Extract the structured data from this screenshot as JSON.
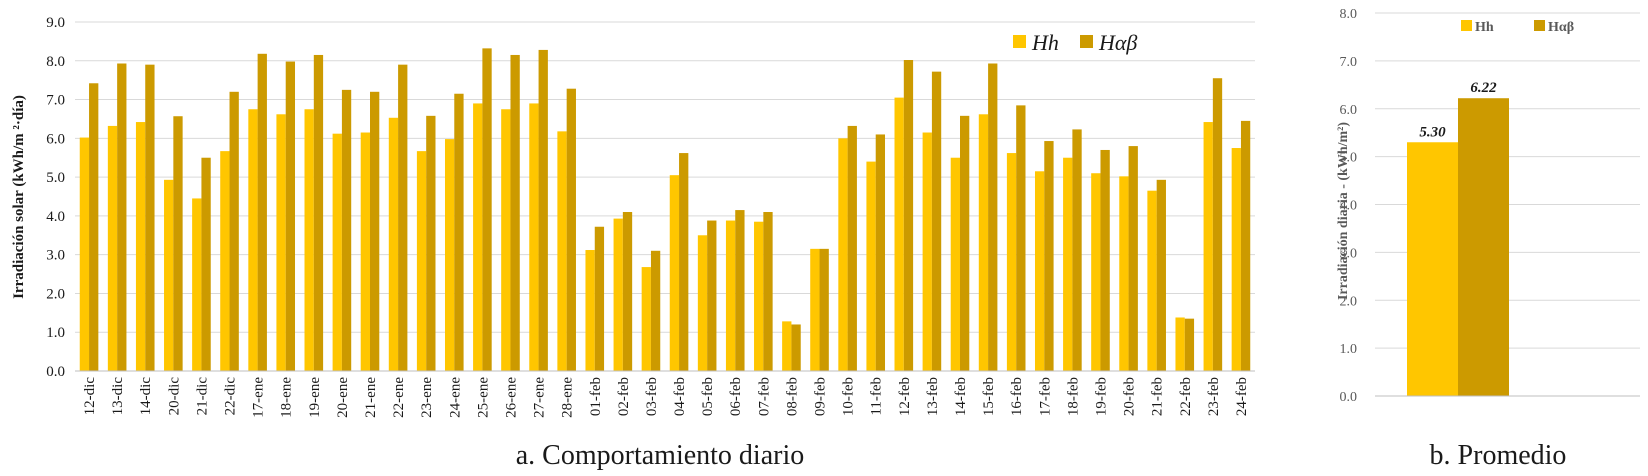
{
  "colors": {
    "hh": "#FFC600",
    "hab": "#CC9A00",
    "grid": "#d9d9d9"
  },
  "captions": {
    "a": "a. Comportamiento diario",
    "b": "b. Promedio"
  },
  "chart_data": [
    {
      "type": "bar",
      "ylabel": "Irradiación solar (kWh/m ²·día)",
      "ylim": [
        0,
        9
      ],
      "yticks": [
        "0.0",
        "1.0",
        "2.0",
        "3.0",
        "4.0",
        "5.0",
        "6.0",
        "7.0",
        "8.0",
        "9.0"
      ],
      "legend_position": "top-right",
      "categories": [
        "12-dic",
        "13-dic",
        "14-dic",
        "20-dic",
        "21-dic",
        "22-dic",
        "17-ene",
        "18-ene",
        "19-ene",
        "20-ene",
        "21-ene",
        "22-ene",
        "23-ene",
        "24-ene",
        "25-ene",
        "26-ene",
        "27-ene",
        "28-ene",
        "01-feb",
        "02-feb",
        "03-feb",
        "04-feb",
        "05-feb",
        "06-feb",
        "07-feb",
        "08-feb",
        "09-feb",
        "10-feb",
        "11-feb",
        "12-feb",
        "13-feb",
        "14-feb",
        "15-feb",
        "16-feb",
        "17-feb",
        "18-feb",
        "19-feb",
        "20-feb",
        "21-feb",
        "22-feb",
        "23-feb",
        "24-feb"
      ],
      "series": [
        {
          "name": "Hh",
          "values": [
            6.02,
            6.32,
            6.42,
            4.93,
            4.45,
            5.67,
            6.75,
            6.62,
            6.75,
            6.12,
            6.15,
            6.53,
            5.67,
            5.98,
            6.9,
            6.75,
            6.9,
            6.18,
            3.12,
            3.93,
            2.68,
            5.05,
            3.5,
            3.88,
            3.85,
            1.28,
            3.15,
            6.0,
            5.4,
            7.05,
            6.15,
            5.5,
            6.62,
            5.62,
            5.15,
            5.5,
            5.1,
            5.02,
            4.65,
            1.38,
            6.42,
            5.75
          ]
        },
        {
          "name": "Hαβ",
          "values": [
            7.42,
            7.93,
            7.9,
            6.57,
            5.5,
            7.2,
            8.18,
            7.98,
            8.15,
            7.25,
            7.2,
            7.9,
            6.58,
            7.15,
            8.32,
            8.15,
            8.28,
            7.28,
            3.72,
            4.1,
            3.1,
            5.62,
            3.88,
            4.15,
            4.1,
            1.2,
            3.15,
            6.32,
            6.1,
            8.02,
            7.72,
            6.58,
            7.93,
            6.85,
            5.93,
            6.23,
            5.7,
            5.8,
            4.93,
            1.35,
            7.55,
            6.45
          ]
        }
      ]
    },
    {
      "type": "bar",
      "ylabel": "Irradiación diaria  - (kWh/m²)",
      "ylim": [
        0,
        8
      ],
      "yticks": [
        "0.0",
        "1.0",
        "2.0",
        "3.0",
        "4.0",
        "5.0",
        "6.0",
        "7.0",
        "8.0"
      ],
      "legend_position": "top",
      "series": [
        {
          "name": "Hh",
          "values": [
            5.3
          ],
          "label": "5.30"
        },
        {
          "name": "Hαβ",
          "values": [
            6.22
          ],
          "label": "6.22"
        }
      ]
    }
  ]
}
